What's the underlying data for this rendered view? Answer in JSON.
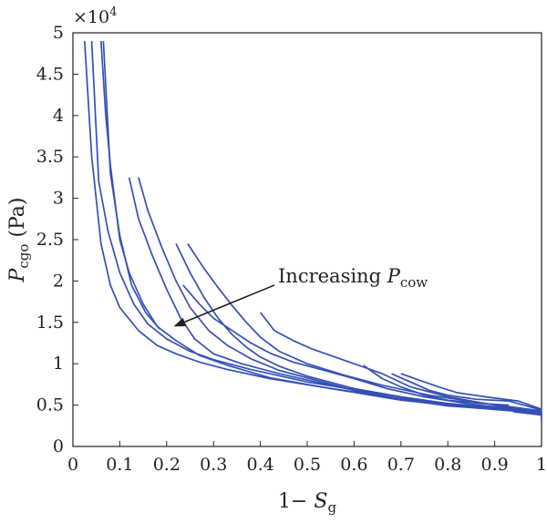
{
  "chart_data": {
    "type": "line",
    "title": "",
    "xlabel": {
      "prefix": "1− ",
      "main": "S",
      "sub": "g"
    },
    "ylabel": {
      "main": "P",
      "sub": "cgo",
      "suffix": " (Pa)"
    },
    "y_multiplier": "×10",
    "y_multiplier_exp": "4",
    "xlim": [
      0,
      1
    ],
    "ylim": [
      0,
      5
    ],
    "x_ticks": [
      "0",
      "0.1",
      "0.2",
      "0.3",
      "0.4",
      "0.5",
      "0.6",
      "0.7",
      "0.8",
      "0.9",
      "1"
    ],
    "y_ticks": [
      "0",
      "0.5",
      "1",
      "1.5",
      "2",
      "2.5",
      "3",
      "3.5",
      "4",
      "4.5",
      "5"
    ],
    "grid": false,
    "line_color": "#3450b4",
    "annotation": {
      "text": "Increasing ",
      "var": "P",
      "sub": "cow",
      "arrow_from": [
        0.43,
        1.95
      ],
      "arrow_to": [
        0.215,
        1.45
      ]
    },
    "series": [
      {
        "x": [
          0.025,
          0.04,
          0.06,
          0.08,
          0.1,
          0.14,
          0.18,
          0.22,
          0.27,
          0.33,
          0.42,
          0.55,
          0.7,
          0.85,
          1.0
        ],
        "y": [
          4.9,
          3.5,
          2.45,
          1.95,
          1.68,
          1.4,
          1.22,
          1.12,
          1.02,
          0.93,
          0.82,
          0.7,
          0.58,
          0.48,
          0.42
        ]
      },
      {
        "x": [
          0.04,
          0.055,
          0.075,
          0.1,
          0.13,
          0.16,
          0.2,
          0.25,
          0.3,
          0.38,
          0.5,
          0.65,
          0.8,
          1.0
        ],
        "y": [
          4.9,
          3.2,
          2.6,
          2.1,
          1.72,
          1.48,
          1.3,
          1.15,
          1.05,
          0.93,
          0.78,
          0.64,
          0.52,
          0.42
        ]
      },
      {
        "x": [
          0.06,
          0.07,
          0.08,
          0.1,
          0.12,
          0.15,
          0.18,
          0.22,
          0.27,
          0.33,
          0.42,
          0.55,
          0.7,
          0.85,
          1.0
        ],
        "y": [
          4.9,
          4.0,
          3.4,
          2.5,
          2.1,
          1.72,
          1.45,
          1.28,
          1.1,
          0.98,
          0.83,
          0.7,
          0.56,
          0.47,
          0.4
        ]
      },
      {
        "x": [
          0.065,
          0.08,
          0.1,
          0.125,
          0.155,
          0.185
        ],
        "y": [
          4.9,
          3.3,
          2.55,
          1.95,
          1.62,
          1.42
        ]
      },
      {
        "x": [
          0.12,
          0.14,
          0.17,
          0.2,
          0.23,
          0.26,
          0.3,
          0.36,
          0.44,
          0.55,
          0.65,
          0.75,
          0.9,
          1.0
        ],
        "y": [
          3.25,
          2.75,
          2.3,
          1.9,
          1.55,
          1.3,
          1.12,
          1.0,
          0.88,
          0.74,
          0.62,
          0.53,
          0.45,
          0.41
        ]
      },
      {
        "x": [
          0.14,
          0.16,
          0.19,
          0.22,
          0.25,
          0.29,
          0.33,
          0.38,
          0.44,
          0.52,
          0.6,
          0.7,
          0.8,
          1.0
        ],
        "y": [
          3.25,
          2.85,
          2.4,
          2.0,
          1.68,
          1.4,
          1.22,
          1.06,
          0.92,
          0.8,
          0.68,
          0.57,
          0.49,
          0.41
        ]
      },
      {
        "x": [
          0.22,
          0.25,
          0.28,
          0.31,
          0.34,
          0.37,
          0.4,
          0.44,
          0.5,
          0.6,
          0.72,
          0.85,
          1.0
        ],
        "y": [
          2.45,
          2.1,
          1.8,
          1.55,
          1.35,
          1.2,
          1.08,
          0.97,
          0.85,
          0.7,
          0.58,
          0.48,
          0.4
        ]
      },
      {
        "x": [
          0.245,
          0.28,
          0.31,
          0.34,
          0.37,
          0.4,
          0.44,
          0.5,
          0.58,
          0.66,
          0.76,
          0.88,
          1.0
        ],
        "y": [
          2.45,
          2.15,
          1.92,
          1.7,
          1.5,
          1.32,
          1.15,
          1.0,
          0.86,
          0.74,
          0.62,
          0.52,
          0.43
        ]
      },
      {
        "x": [
          0.235,
          0.27,
          0.3,
          0.34,
          0.38,
          0.42,
          0.47,
          0.53,
          0.6,
          0.67,
          0.75,
          0.85,
          1.0
        ],
        "y": [
          1.95,
          1.72,
          1.55,
          1.4,
          1.25,
          1.13,
          1.02,
          0.93,
          0.82,
          0.7,
          0.6,
          0.51,
          0.42
        ]
      },
      {
        "x": [
          0.4,
          0.43,
          0.47,
          0.51,
          0.56,
          0.61,
          0.66,
          0.72,
          0.8,
          0.9,
          1.0
        ],
        "y": [
          1.62,
          1.4,
          1.28,
          1.18,
          1.08,
          0.98,
          0.88,
          0.72,
          0.6,
          0.5,
          0.42
        ]
      },
      {
        "x": [
          0.62,
          0.66,
          0.7,
          0.75,
          0.8,
          0.87,
          0.93
        ],
        "y": [
          0.98,
          0.82,
          0.72,
          0.62,
          0.56,
          0.52,
          0.5
        ]
      },
      {
        "x": [
          0.68,
          0.72,
          0.76,
          0.8,
          0.86,
          0.93,
          1.0
        ],
        "y": [
          0.88,
          0.78,
          0.68,
          0.62,
          0.57,
          0.55,
          0.44
        ]
      },
      {
        "x": [
          0.7,
          0.74,
          0.78,
          0.82,
          0.88,
          0.95,
          1.0
        ],
        "y": [
          0.88,
          0.8,
          0.72,
          0.65,
          0.6,
          0.55,
          0.45
        ]
      },
      {
        "x": [
          0.94,
          0.97,
          1.0
        ],
        "y": [
          0.42,
          0.4,
          0.38
        ]
      },
      {
        "x": [
          0.96,
          0.99,
          1.0
        ],
        "y": [
          0.44,
          0.41,
          0.38
        ]
      },
      {
        "x": [
          1.0,
          1.0
        ],
        "y": [
          0.42,
          0.32
        ]
      }
    ]
  }
}
